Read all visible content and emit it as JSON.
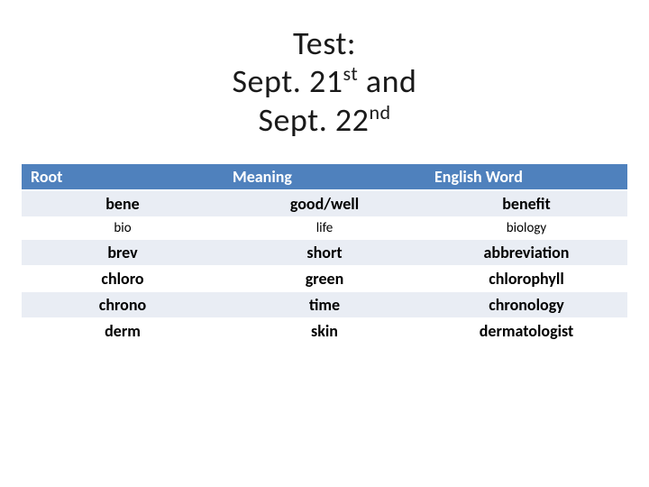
{
  "title": {
    "line1": "Test:",
    "line2_a": "Sept. 21",
    "line2_sup": "st",
    "line2_b": " and",
    "line3_a": "Sept. 22",
    "line3_sup": "nd"
  },
  "table": {
    "header_bg": "#4f81bd",
    "header_fg": "#ffffff",
    "alt_bg": "#e9edf4",
    "columns": [
      "Root",
      "Meaning",
      "English Word"
    ],
    "rows": [
      {
        "cells": [
          "bene",
          "good/well",
          "benefit"
        ],
        "alt": true,
        "small": false
      },
      {
        "cells": [
          "bio",
          "life",
          "biology"
        ],
        "alt": false,
        "small": true
      },
      {
        "cells": [
          "brev",
          "short",
          "abbreviation"
        ],
        "alt": true,
        "small": false
      },
      {
        "cells": [
          "chloro",
          "green",
          "chlorophyll"
        ],
        "alt": false,
        "small": false
      },
      {
        "cells": [
          "chrono",
          "time",
          "chronology"
        ],
        "alt": true,
        "small": false
      },
      {
        "cells": [
          "derm",
          "skin",
          "dermatologist"
        ],
        "alt": false,
        "small": false
      }
    ]
  }
}
